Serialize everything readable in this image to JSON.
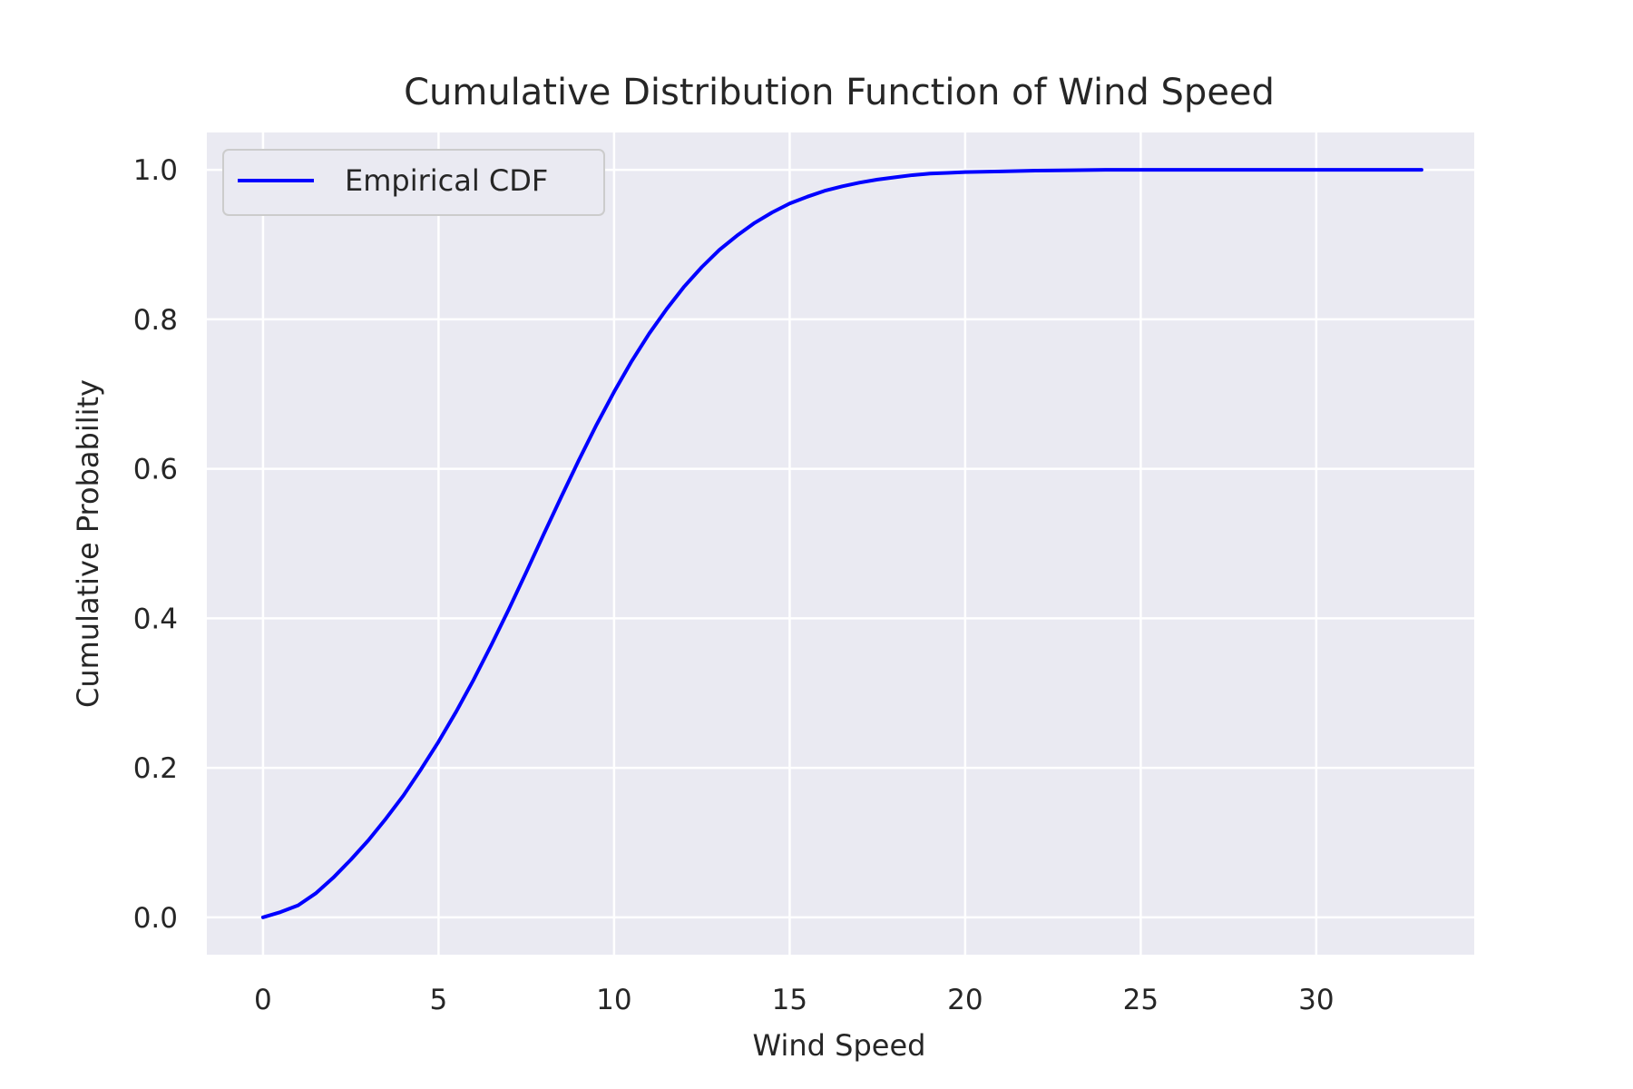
{
  "chart_data": {
    "type": "line",
    "title": "Cumulative Distribution Function of Wind Speed",
    "xlabel": "Wind Speed",
    "ylabel": "Cumulative Probability",
    "xlim": [
      -1.6,
      34.5
    ],
    "ylim": [
      -0.05,
      1.05
    ],
    "xticks": [
      0,
      5,
      10,
      15,
      20,
      25,
      30
    ],
    "yticks": [
      0.0,
      0.2,
      0.4,
      0.6,
      0.8,
      1.0
    ],
    "xtick_labels": [
      "0",
      "5",
      "10",
      "15",
      "20",
      "25",
      "30"
    ],
    "ytick_labels": [
      "0.0",
      "0.2",
      "0.4",
      "0.6",
      "0.8",
      "1.0"
    ],
    "grid": true,
    "background": "#eaeaf2",
    "legend": {
      "position": "top-left",
      "entries": [
        "Empirical CDF"
      ]
    },
    "series": [
      {
        "name": "Empirical CDF",
        "color": "#0000ff",
        "x": [
          0,
          0.5,
          1,
          1.5,
          2,
          2.5,
          3,
          3.5,
          4,
          4.5,
          5,
          5.5,
          6,
          6.5,
          7,
          7.5,
          8,
          8.5,
          9,
          9.5,
          10,
          10.5,
          11,
          11.5,
          12,
          12.5,
          13,
          13.5,
          14,
          14.5,
          15,
          15.5,
          16,
          16.5,
          17,
          17.5,
          18,
          18.5,
          19,
          19.5,
          20,
          21,
          22,
          23,
          24,
          25,
          26,
          27,
          28,
          29,
          30,
          31,
          32,
          33
        ],
        "y": [
          0.0,
          0.007,
          0.016,
          0.032,
          0.053,
          0.077,
          0.103,
          0.132,
          0.163,
          0.198,
          0.235,
          0.275,
          0.318,
          0.364,
          0.412,
          0.462,
          0.513,
          0.563,
          0.612,
          0.659,
          0.703,
          0.744,
          0.781,
          0.814,
          0.844,
          0.87,
          0.893,
          0.912,
          0.929,
          0.943,
          0.955,
          0.964,
          0.972,
          0.978,
          0.983,
          0.987,
          0.99,
          0.993,
          0.995,
          0.996,
          0.997,
          0.998,
          0.999,
          0.9995,
          1.0,
          1.0,
          1.0,
          1.0,
          1.0,
          1.0,
          1.0,
          1.0,
          1.0,
          1.0
        ]
      }
    ]
  }
}
